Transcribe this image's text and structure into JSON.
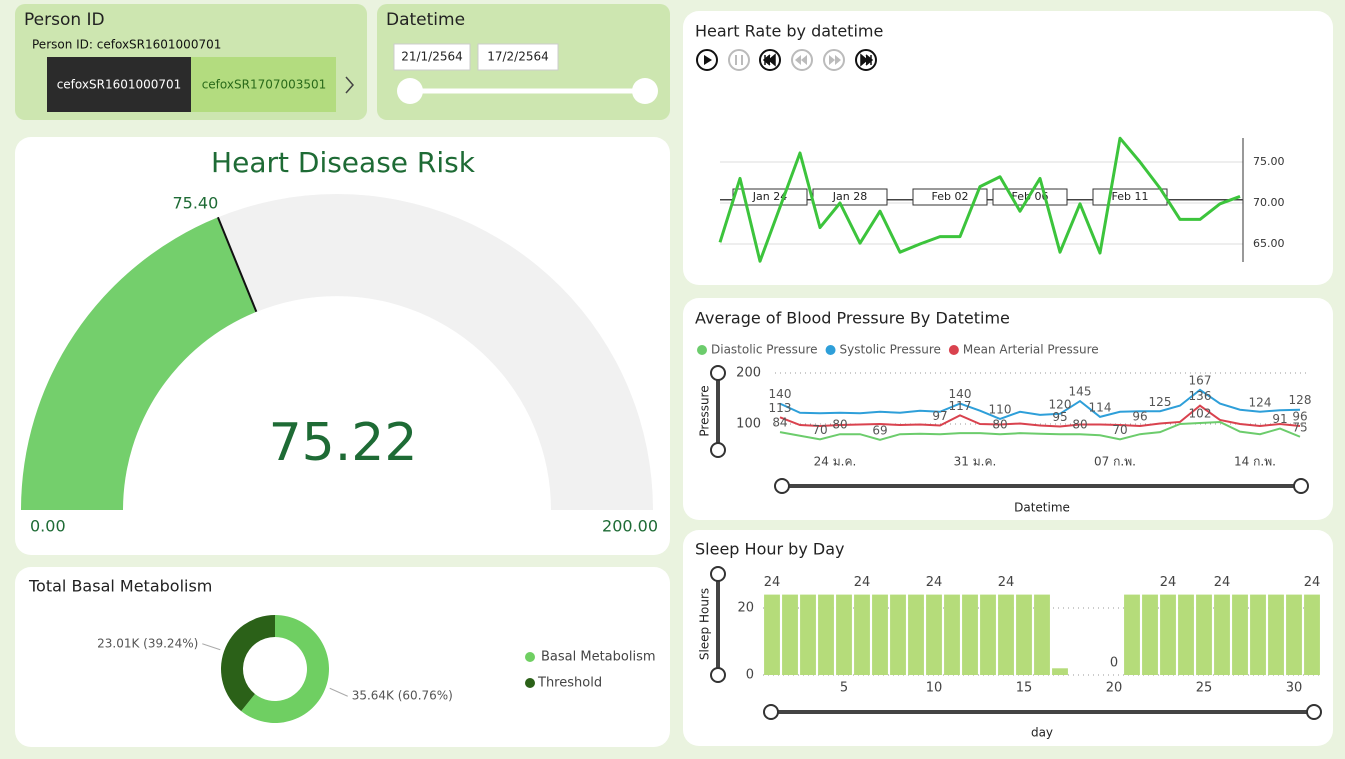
{
  "person_slicer": {
    "title": "Person ID",
    "selected_label": "Person ID: cefoxSR1601000701",
    "options": [
      "cefoxSR1601000701",
      "cefoxSR1707003501"
    ]
  },
  "date_slicer": {
    "title": "Datetime",
    "start": "21/1/2564",
    "end": "17/2/2564"
  },
  "chart_data": [
    {
      "type": "gauge",
      "title": "Heart Disease Risk",
      "value": 75.22,
      "target": {
        "value": 75.4,
        "label": "75.40"
      },
      "range": [
        {
          "value": 0,
          "label": "0.00"
        },
        {
          "value": 200,
          "label": "200.00"
        }
      ],
      "color": "#74cf6c"
    },
    {
      "type": "line",
      "title": "Heart Rate by datetime",
      "categories": [
        null,
        null,
        null,
        "Jan 24",
        null,
        null,
        null,
        "Jan 28",
        null,
        null,
        null,
        null,
        "Feb 02",
        null,
        null,
        null,
        "Feb 06",
        null,
        null,
        null,
        null,
        "Feb 11",
        null,
        null,
        null,
        null,
        null
      ],
      "values": [
        65.2,
        73.0,
        62.9,
        69.5,
        76.1,
        67.0,
        70.0,
        65.1,
        69.0,
        64.0,
        65.0,
        65.9,
        65.9,
        72.0,
        73.2,
        69.0,
        73.0,
        64.0,
        69.9,
        63.9,
        77.9,
        75.0,
        71.8,
        68.0,
        68.0,
        69.9,
        70.8
      ],
      "color": "#3cc43c",
      "reference_value": 70.4,
      "ylim": [
        62.5,
        78.5
      ],
      "yticks": [
        {
          "value": 65,
          "label": "65.00"
        },
        {
          "value": 70,
          "label": "70.00"
        },
        {
          "value": 75,
          "label": "75.00"
        }
      ]
    },
    {
      "type": "multiline",
      "title": "Average of Blood Pressure By Datetime",
      "x_label": "Datetime",
      "y_label": "Pressure",
      "categories": [
        null,
        null,
        null,
        "24 ม.ค.",
        null,
        null,
        null,
        null,
        null,
        null,
        "31 ม.ค.",
        null,
        null,
        null,
        null,
        null,
        null,
        "07 ก.พ.",
        null,
        null,
        null,
        null,
        null,
        null,
        "14 ก.พ.",
        null,
        null
      ],
      "series": [
        {
          "name": "Diastolic Pressure",
          "color": "#6ccc6c",
          "values": [
            84,
            77,
            70,
            80,
            80,
            69,
            80,
            81,
            80,
            82,
            82,
            80,
            82,
            81,
            80,
            80,
            78,
            70,
            80,
            84,
            100,
            102,
            104,
            85,
            80,
            91,
            75
          ],
          "value_labels": [
            "84",
            null,
            "70",
            "80",
            null,
            "69",
            null,
            null,
            null,
            null,
            null,
            "80",
            null,
            null,
            null,
            "80",
            null,
            "70",
            null,
            null,
            null,
            "102",
            null,
            null,
            null,
            "91",
            "75"
          ]
        },
        {
          "name": "Systolic Pressure",
          "color": "#2e9fd9",
          "values": [
            140,
            122,
            121,
            122,
            121,
            124,
            122,
            126,
            124,
            140,
            126,
            110,
            124,
            118,
            120,
            145,
            114,
            124,
            125,
            125,
            136,
            167,
            140,
            128,
            124,
            127,
            128
          ],
          "value_labels": [
            "140",
            null,
            null,
            null,
            null,
            null,
            null,
            null,
            null,
            "140",
            null,
            "110",
            null,
            null,
            "120",
            "145",
            "114",
            null,
            null,
            "125",
            null,
            "167",
            null,
            null,
            "124",
            null,
            "128"
          ]
        },
        {
          "name": "Mean Arterial Pressure",
          "color": "#d9424e",
          "values": [
            113,
            98,
            96,
            98,
            99,
            100,
            98,
            99,
            97,
            117,
            100,
            99,
            101,
            97,
            95,
            99,
            99,
            98,
            96,
            101,
            104,
            136,
            108,
            100,
            96,
            100,
            96
          ],
          "value_labels": [
            "113",
            null,
            null,
            null,
            null,
            null,
            null,
            null,
            "97",
            "117",
            null,
            null,
            null,
            null,
            "95",
            null,
            null,
            null,
            "96",
            null,
            null,
            "136",
            null,
            null,
            null,
            null,
            "96"
          ]
        }
      ],
      "ylim": [
        40,
        215
      ],
      "yticks": [
        100,
        200
      ]
    },
    {
      "type": "bar",
      "title": "Sleep Hour by Day",
      "x_label": "day",
      "y_label": "Sleep Hours",
      "x": [
        1,
        2,
        3,
        4,
        5,
        6,
        7,
        8,
        9,
        10,
        11,
        12,
        13,
        14,
        15,
        16,
        17,
        18,
        19,
        20,
        21,
        22,
        23,
        24,
        25,
        26,
        27,
        28,
        29,
        30,
        31
      ],
      "values": [
        24,
        24,
        24,
        24,
        24,
        24,
        24,
        24,
        24,
        24,
        24,
        24,
        24,
        24,
        24,
        24,
        2,
        null,
        null,
        0,
        24,
        24,
        24,
        24,
        24,
        24,
        24,
        24,
        24,
        24,
        24
      ],
      "value_labels": [
        "24",
        null,
        null,
        null,
        null,
        "24",
        null,
        null,
        null,
        "24",
        null,
        null,
        null,
        "24",
        null,
        null,
        null,
        null,
        null,
        "0",
        null,
        null,
        "24",
        null,
        null,
        "24",
        null,
        null,
        null,
        null,
        "24"
      ],
      "color": "#b5dc7a",
      "xlim": [
        0.5,
        31.5
      ],
      "xticks": [
        5,
        10,
        15,
        20,
        25,
        30
      ],
      "ylim": [
        0,
        28
      ],
      "yticks": [
        0,
        20
      ]
    },
    {
      "type": "donut",
      "title": "Total Basal Metabolism",
      "categories": [
        "Basal Metabolism",
        "Threshold"
      ],
      "values": [
        35640,
        23010
      ],
      "value_labels": [
        "35.64K (60.76%)",
        "23.01K (39.24%)"
      ],
      "colors": [
        "#6fcf62",
        "#2b6118"
      ]
    }
  ]
}
